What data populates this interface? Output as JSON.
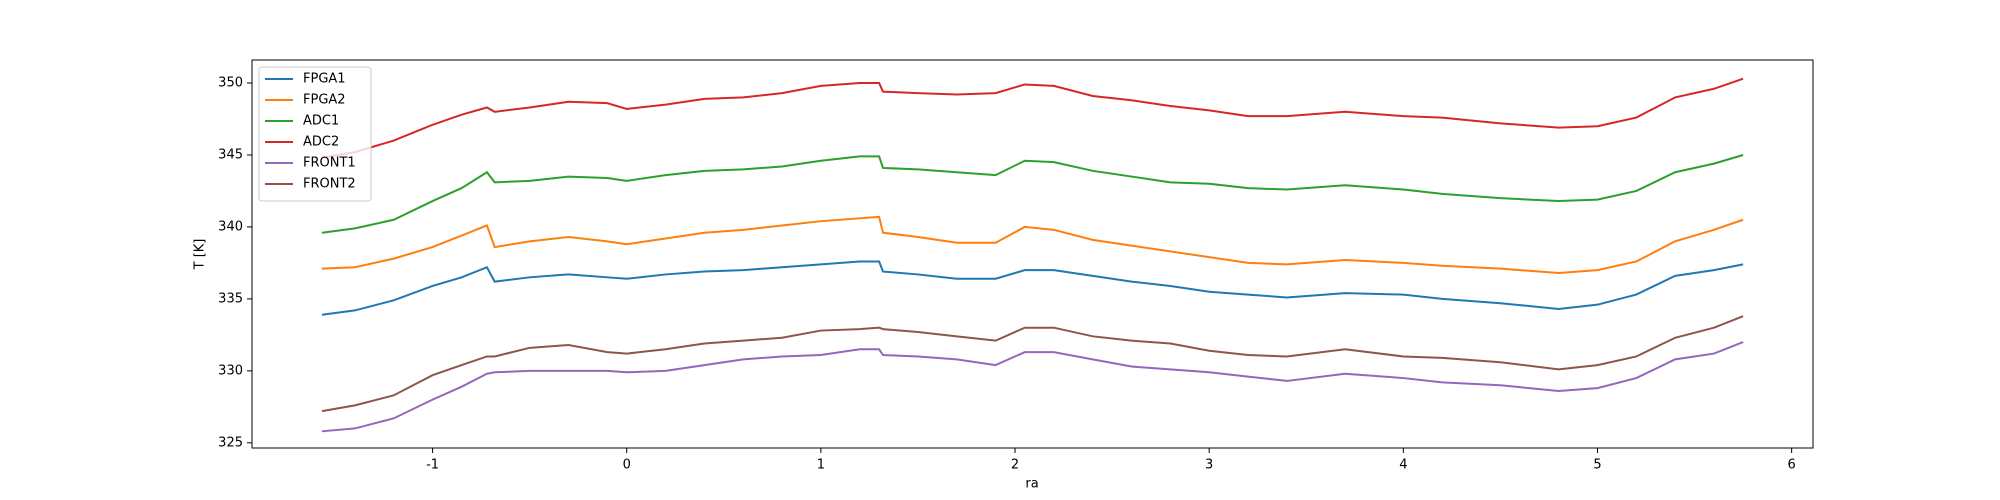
{
  "chart_data": {
    "type": "line",
    "xlabel": "ra",
    "ylabel": "T [K]",
    "xlim": [
      -1.93,
      6.11
    ],
    "ylim": [
      324.64,
      351.6
    ],
    "xticks": [
      -1,
      0,
      1,
      2,
      3,
      4,
      5,
      6
    ],
    "yticks": [
      325,
      330,
      335,
      340,
      345,
      350
    ],
    "legend": "upper-left",
    "x": [
      -1.57,
      -1.4,
      -1.2,
      -1.0,
      -0.85,
      -0.72,
      -0.68,
      -0.5,
      -0.3,
      -0.1,
      0,
      0.2,
      0.4,
      0.6,
      0.8,
      1.0,
      1.2,
      1.3,
      1.32,
      1.5,
      1.7,
      1.9,
      2.05,
      2.2,
      2.4,
      2.6,
      2.8,
      3.0,
      3.2,
      3.4,
      3.7,
      4.0,
      4.2,
      4.5,
      4.8,
      5.0,
      5.2,
      5.4,
      5.6,
      5.75
    ],
    "series": [
      {
        "name": "FPGA1",
        "color": "#1f77b4",
        "values": [
          333.9,
          334.2,
          334.9,
          335.9,
          336.5,
          337.2,
          336.2,
          336.5,
          336.7,
          336.5,
          336.4,
          336.7,
          336.9,
          337.0,
          337.2,
          337.4,
          337.6,
          337.6,
          336.9,
          336.7,
          336.4,
          336.4,
          337.0,
          337.0,
          336.6,
          336.2,
          335.9,
          335.5,
          335.3,
          335.1,
          335.4,
          335.3,
          335.0,
          334.7,
          334.3,
          334.6,
          335.3,
          336.6,
          337.0,
          337.4
        ]
      },
      {
        "name": "FPGA2",
        "color": "#ff7f0e",
        "values": [
          337.1,
          337.2,
          337.8,
          338.6,
          339.4,
          340.1,
          338.6,
          339.0,
          339.3,
          339.0,
          338.8,
          339.2,
          339.6,
          339.8,
          340.1,
          340.4,
          340.6,
          340.7,
          339.6,
          339.3,
          338.9,
          338.9,
          340.0,
          339.8,
          339.1,
          338.7,
          338.3,
          337.9,
          337.5,
          337.4,
          337.7,
          337.5,
          337.3,
          337.1,
          336.8,
          337.0,
          337.6,
          339.0,
          339.8,
          340.5
        ]
      },
      {
        "name": "ADC1",
        "color": "#2ca02c",
        "values": [
          339.6,
          339.9,
          340.5,
          341.8,
          342.7,
          343.8,
          343.1,
          343.2,
          343.5,
          343.4,
          343.2,
          343.6,
          343.9,
          344.0,
          344.2,
          344.6,
          344.9,
          344.9,
          344.1,
          344.0,
          343.8,
          343.6,
          344.6,
          344.5,
          343.9,
          343.5,
          343.1,
          343.0,
          342.7,
          342.6,
          342.9,
          342.6,
          342.3,
          342.0,
          341.8,
          341.9,
          342.5,
          343.8,
          344.4,
          345.0
        ]
      },
      {
        "name": "ADC2",
        "color": "#d62728",
        "values": [
          344.8,
          345.2,
          346.0,
          347.1,
          347.8,
          348.3,
          348.0,
          348.3,
          348.7,
          348.6,
          348.2,
          348.5,
          348.9,
          349.0,
          349.3,
          349.8,
          350.0,
          350.0,
          349.4,
          349.3,
          349.2,
          349.3,
          349.9,
          349.8,
          349.1,
          348.8,
          348.4,
          348.1,
          347.7,
          347.7,
          348.0,
          347.7,
          347.6,
          347.2,
          346.9,
          347.0,
          347.6,
          349.0,
          349.6,
          350.3
        ]
      },
      {
        "name": "FRONT1",
        "color": "#9467bd",
        "values": [
          325.8,
          326.0,
          326.7,
          328.0,
          328.9,
          329.8,
          329.9,
          330.0,
          330.0,
          330.0,
          329.9,
          330.0,
          330.4,
          330.8,
          331.0,
          331.1,
          331.5,
          331.5,
          331.1,
          331.0,
          330.8,
          330.4,
          331.3,
          331.3,
          330.8,
          330.3,
          330.1,
          329.9,
          329.6,
          329.3,
          329.8,
          329.5,
          329.2,
          329.0,
          328.6,
          328.8,
          329.5,
          330.8,
          331.2,
          332.0
        ]
      },
      {
        "name": "FRONT2",
        "color": "#8c564b",
        "values": [
          327.2,
          327.6,
          328.3,
          329.7,
          330.4,
          331.0,
          331.0,
          331.6,
          331.8,
          331.3,
          331.2,
          331.5,
          331.9,
          332.1,
          332.3,
          332.8,
          332.9,
          333.0,
          332.9,
          332.7,
          332.4,
          332.1,
          333.0,
          333.0,
          332.4,
          332.1,
          331.9,
          331.4,
          331.1,
          331.0,
          331.5,
          331.0,
          330.9,
          330.6,
          330.1,
          330.4,
          331.0,
          332.3,
          333.0,
          333.8
        ]
      }
    ]
  }
}
